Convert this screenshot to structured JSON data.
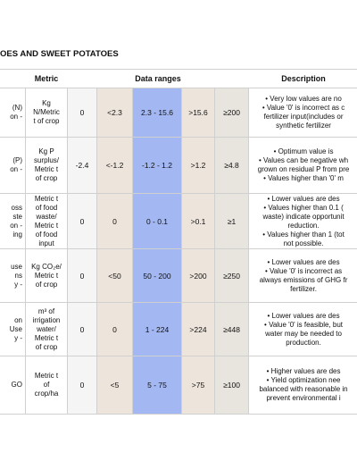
{
  "title": "OES AND SWEET POTATOES",
  "header": {
    "metric": "Metric",
    "ranges": "Data ranges",
    "description": "Description"
  },
  "rows": [
    {
      "indicator": [
        "(N)",
        "on -"
      ],
      "metric": [
        "Kg",
        "N/Metric",
        "t of crop"
      ],
      "ranges": [
        "0",
        "<2.3",
        "2.3 - 15.6",
        ">15.6",
        "≥200"
      ],
      "description": [
        "• Very low values are no",
        "• Value '0' is incorrect as c",
        "fertilizer input(includes or",
        "synthetic fertilizer"
      ]
    },
    {
      "indicator": [
        "(P)",
        "on -"
      ],
      "metric": [
        "Kg P",
        "surplus/",
        "Metric t",
        "of crop"
      ],
      "ranges": [
        "-2.4",
        "<-1.2",
        "-1.2 - 1.2",
        ">1.2",
        "≥4.8"
      ],
      "description": [
        "• Optimum value is",
        "• Values can be negative wh",
        "grown on residual P from pre",
        "• Values higher than '0' m"
      ]
    },
    {
      "indicator": [
        "oss",
        "ste",
        "on -",
        "ing"
      ],
      "metric": [
        "Metric t",
        "of food",
        "waste/",
        "Metric t",
        "of food",
        "input"
      ],
      "ranges": [
        "0",
        "0",
        "0 - 0.1",
        ">0.1",
        "≥1"
      ],
      "description": [
        "• Lower values are des",
        "• Values higher than 0.1 (",
        "waste) indicate opportunit",
        "reduction.",
        "• Values higher than 1 (tot",
        "not possible."
      ]
    },
    {
      "indicator": [
        "use",
        "ns",
        "y -"
      ],
      "metric": [
        "Kg CO₂e/",
        "Metric t",
        "of crop"
      ],
      "ranges": [
        "0",
        "<50",
        "50 - 200",
        ">200",
        "≥250"
      ],
      "description": [
        "• Lower values are des",
        "• Value '0' is incorrect as",
        "always emissions of GHG fr",
        "fertilizer."
      ]
    },
    {
      "indicator": [
        "on",
        "Use",
        "y -"
      ],
      "metric": [
        "m³ of",
        "irrigation",
        "water/",
        "Metric t",
        "of crop"
      ],
      "ranges": [
        "0",
        "0",
        "1 - 224",
        ">224",
        "≥448"
      ],
      "description": [
        "• Lower values are des",
        "• Value '0' is feasible, but",
        "water may be needed to",
        "production."
      ]
    },
    {
      "indicator": [
        "GO"
      ],
      "metric": [
        "Metric t",
        "of",
        "crop/ha"
      ],
      "ranges": [
        "0",
        "<5",
        "5 - 75",
        ">75",
        "≥100"
      ],
      "description": [
        "• Higher values are des",
        "• Yield optimization nee",
        "balanced with reasonable in",
        "prevent environmental i"
      ]
    }
  ]
}
